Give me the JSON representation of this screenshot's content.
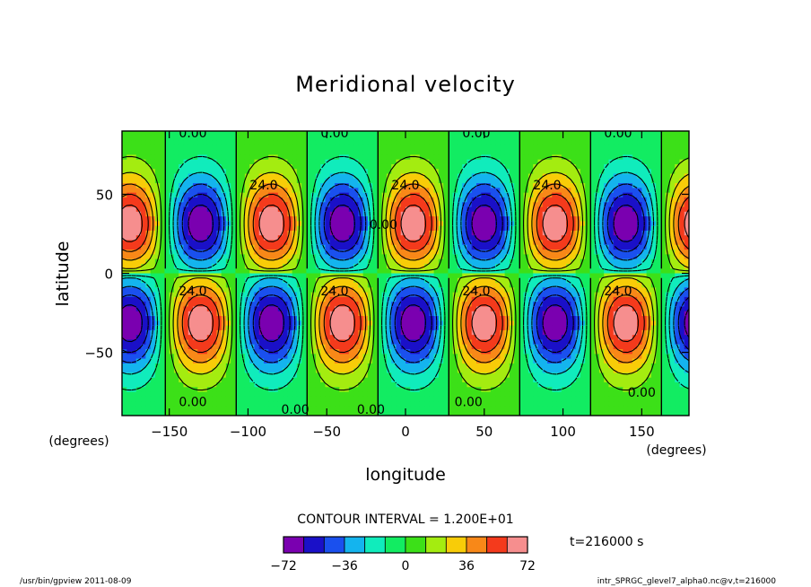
{
  "chart_data": {
    "type": "heatmap",
    "subtype": "filled-contour",
    "title": "Meridional velocity",
    "xlabel": "longitude",
    "ylabel": "latitude",
    "x_unit": "(degrees)",
    "y_unit": "(degrees)",
    "xlim": [
      -180,
      180
    ],
    "ylim": [
      -90,
      90
    ],
    "x_ticks": [
      -150,
      -100,
      -50,
      0,
      50,
      100,
      150
    ],
    "y_ticks": [
      -50,
      0,
      50
    ],
    "x_tick_labels": [
      "−150",
      "−100",
      "−50",
      "0",
      "50",
      "100",
      "150"
    ],
    "y_tick_labels": [
      "−50",
      "0",
      "50"
    ],
    "contour_interval_label": "CONTOUR INTERVAL = 1.200E+01",
    "contour_interval": 12,
    "pattern": {
      "zonal_wavenumber": 4,
      "max_longitudes_north": [
        -85,
        5,
        95
      ],
      "min_longitudes_north": [
        -130,
        -40,
        50,
        140
      ],
      "max_longitudes_south": [
        -130,
        -40,
        50,
        140
      ],
      "min_longitudes_south": [
        -175,
        -85,
        5,
        95
      ],
      "center_latitudes": [
        30,
        -30
      ],
      "amplitude": 72
    },
    "contour_labels": [
      {
        "text": "0.00",
        "lon": -135,
        "lat": 86
      },
      {
        "text": "0.00",
        "lon": -45,
        "lat": 86
      },
      {
        "text": "0.00",
        "lon": 45,
        "lat": 86
      },
      {
        "text": "0.00",
        "lon": 135,
        "lat": 86
      },
      {
        "text": "24.0",
        "lon": -90,
        "lat": 53
      },
      {
        "text": "24.0",
        "lon": 0,
        "lat": 53
      },
      {
        "text": "24.0",
        "lon": 90,
        "lat": 53
      },
      {
        "text": "0.00",
        "lon": -14,
        "lat": 28
      },
      {
        "text": "24.0",
        "lon": -135,
        "lat": -14
      },
      {
        "text": "24.0",
        "lon": -45,
        "lat": -14
      },
      {
        "text": "24.0",
        "lon": 45,
        "lat": -14
      },
      {
        "text": "24.0",
        "lon": 135,
        "lat": -14
      },
      {
        "text": "0.00",
        "lon": -135,
        "lat": -84
      },
      {
        "text": "0.00",
        "lon": -70,
        "lat": -89
      },
      {
        "text": "0.00",
        "lon": -22,
        "lat": -89
      },
      {
        "text": "0.00",
        "lon": 40,
        "lat": -84
      },
      {
        "text": "0.00",
        "lon": 150,
        "lat": -78
      }
    ],
    "colorbar": {
      "levels": [
        -72,
        -60,
        -48,
        -36,
        -24,
        -12,
        0,
        12,
        24,
        36,
        48,
        60,
        72
      ],
      "labeled_ticks": [
        -72,
        -36,
        0,
        36,
        72
      ],
      "labels": [
        "−72",
        "−36",
        "0",
        "36",
        "72"
      ],
      "colors": [
        "#7a00b0",
        "#1a10c8",
        "#1a50ee",
        "#14b4ee",
        "#10ecbc",
        "#12ec62",
        "#3ce018",
        "#a4ec10",
        "#f8cc08",
        "#f88818",
        "#f43a1c",
        "#f68e8e"
      ]
    }
  },
  "annotations": {
    "time": "t=216000 s",
    "footer_left": "/usr/bin/gpview   2011-08-09",
    "footer_right": "intr_SPRGC_glevel7_alpha0.nc@v,t=216000"
  }
}
